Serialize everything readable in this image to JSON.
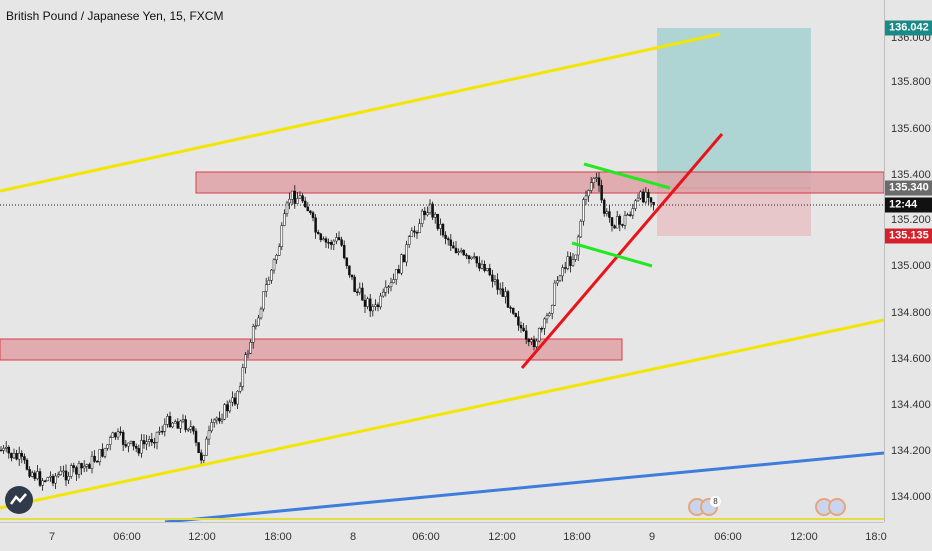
{
  "header": {
    "title": "British Pound / Japanese Yen, 15, FXCM"
  },
  "y_axis": {
    "ticks": [
      "136.000",
      "135.800",
      "135.600",
      "135.400",
      "135.200",
      "135.000",
      "134.800",
      "134.600",
      "134.400",
      "134.200",
      "134.000"
    ],
    "tags": [
      {
        "label": "136.042",
        "bg": "#1a8a86"
      },
      {
        "label": "135.340",
        "bg": "#6b6b6b"
      },
      {
        "label": "12:44",
        "bg": "#111111"
      },
      {
        "label": "135.135",
        "bg": "#d6212d"
      }
    ]
  },
  "x_axis": {
    "ticks": [
      "7",
      "06:00",
      "12:00",
      "18:00",
      "8",
      "06:00",
      "12:00",
      "18:00",
      "9",
      "06:00",
      "12:00",
      "18:0"
    ]
  },
  "events": {
    "badge": "8"
  },
  "colors": {
    "background": "#e6e6e6",
    "yellow_channel": "#f2e600",
    "blue_trend": "#3d7ddb",
    "red_trend": "#e8141a",
    "green_wedge": "#22e81f",
    "zone_fill": "#e0a3a7",
    "zone_border": "#d6212d",
    "target_fill": "#a3d1d0",
    "stop_fill": "#e8c3c6"
  },
  "chart_data": {
    "type": "candlestick",
    "symbol": "GBPJPY",
    "timeframe": "15",
    "ylim": [
      133.92,
      136.08
    ],
    "price_tags": [
      136.042,
      135.34,
      135.135
    ],
    "resistance_zone": [
      135.28,
      135.42
    ],
    "support_zone": [
      134.58,
      134.7
    ],
    "long_position": {
      "target": 136.042,
      "entry": 135.34,
      "stop": 135.135
    }
  }
}
